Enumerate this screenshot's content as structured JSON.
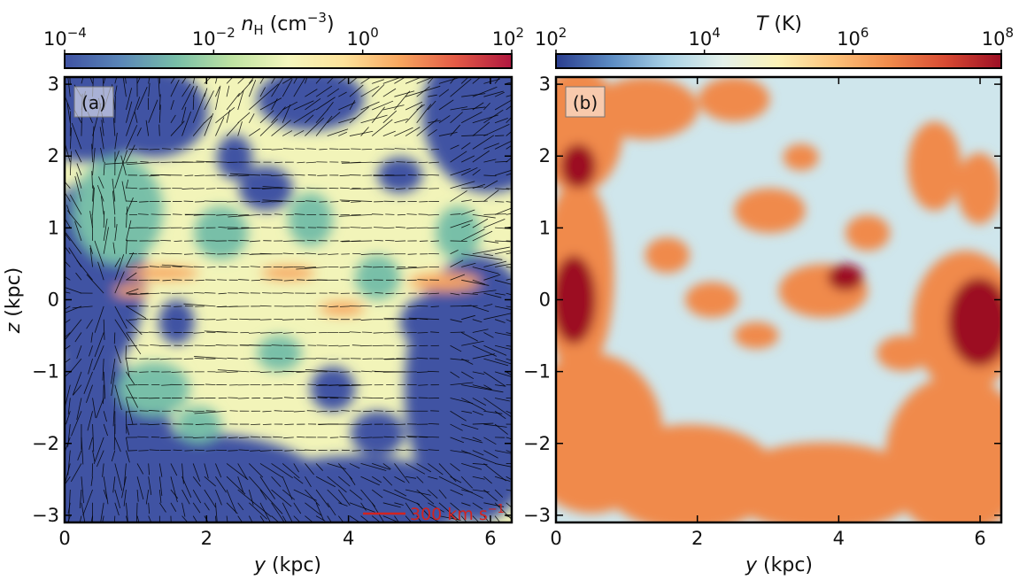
{
  "chart_data": [
    {
      "type": "heatmap",
      "panel_label": "(a)",
      "quantity": "n_H",
      "colorbar": {
        "label_main": "n",
        "label_sub": "H",
        "label_unit": " (cm",
        "label_unit_exp": "−3",
        "label_unit_close": ")",
        "scale": "log",
        "range": [
          0.0001,
          100
        ],
        "ticks": [
          {
            "base": "10",
            "exp": "−4",
            "value": 0.0001
          },
          {
            "base": "10",
            "exp": "−2",
            "value": 0.01
          },
          {
            "base": "10",
            "exp": "0",
            "value": 1
          },
          {
            "base": "10",
            "exp": "2",
            "value": 100
          }
        ],
        "colors": [
          "#3f52a3",
          "#5a86b8",
          "#78bfa8",
          "#bfe3a2",
          "#f4f6bd",
          "#fde29a",
          "#f8a65f",
          "#e35a46",
          "#b0173f"
        ]
      },
      "xlabel_var": "y",
      "xlabel_unit": " (kpc)",
      "ylabel_var": "z",
      "ylabel_unit": " (kpc)",
      "xlim": [
        0,
        6.3
      ],
      "ylim": [
        -3.1,
        3.1
      ],
      "xticks": [
        "0",
        "2",
        "4",
        "6"
      ],
      "yticks": [
        "−3",
        "−2",
        "−1",
        "0",
        "1",
        "2",
        "3"
      ],
      "overlay": {
        "type": "velocity-vectors",
        "color": "#000000",
        "scale_bar_label_value": "300 km s",
        "scale_bar_label_exp": "−1",
        "scale_bar_color": "#d2231f"
      }
    },
    {
      "type": "heatmap",
      "panel_label": "(b)",
      "quantity": "T",
      "colorbar": {
        "label_main": "T",
        "label_unit": " (K)",
        "scale": "log",
        "range": [
          100,
          100000000
        ],
        "ticks": [
          {
            "base": "10",
            "exp": "2",
            "value": 100
          },
          {
            "base": "10",
            "exp": "4",
            "value": 10000
          },
          {
            "base": "10",
            "exp": "6",
            "value": 1000000
          },
          {
            "base": "10",
            "exp": "8",
            "value": 100000000
          }
        ],
        "colors": [
          "#2a3d8f",
          "#5c8cc3",
          "#a9d2e6",
          "#e4f1ea",
          "#fcf2b6",
          "#fdc27a",
          "#f08a4b",
          "#d84a33",
          "#9c0f24"
        ]
      },
      "xlabel_var": "y",
      "xlabel_unit": " (kpc)",
      "xlim": [
        0,
        6.3
      ],
      "ylim": [
        -3.1,
        3.1
      ],
      "xticks": [
        "0",
        "2",
        "4",
        "6"
      ],
      "yticks": [
        "−3",
        "−2",
        "−1",
        "0",
        "1",
        "2",
        "3"
      ]
    }
  ]
}
